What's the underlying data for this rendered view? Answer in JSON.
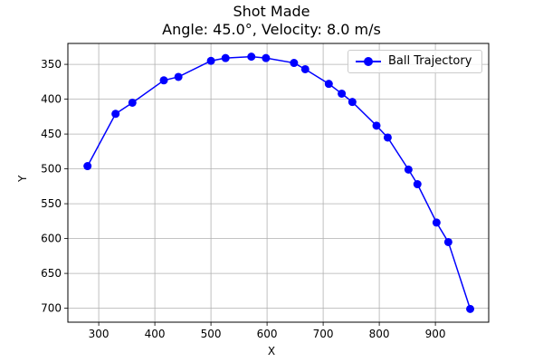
{
  "chart_data": {
    "type": "line",
    "title": "Shot Made",
    "subtitle": "Angle: 45.0°, Velocity: 8.0 m/s",
    "xlabel": "X",
    "ylabel": "Y",
    "xlim": [
      245,
      995
    ],
    "ylim": [
      720,
      320
    ],
    "y_inverted": true,
    "xticks": [
      300,
      400,
      500,
      600,
      700,
      800,
      900
    ],
    "yticks": [
      350,
      400,
      450,
      500,
      550,
      600,
      650,
      700
    ],
    "grid": true,
    "legend_position": "top-right",
    "series": [
      {
        "name": "Ball Trajectory",
        "color": "#0000ff",
        "marker": "circle",
        "x": [
          280,
          330,
          360,
          416,
          442,
          500,
          526,
          572,
          598,
          648,
          668,
          710,
          733,
          752,
          795,
          815,
          852,
          868,
          902,
          923,
          962
        ],
        "y": [
          496,
          421,
          405,
          373,
          368,
          345,
          341,
          339,
          341,
          348,
          357,
          378,
          392,
          404,
          438,
          455,
          501,
          522,
          577,
          605,
          701
        ]
      }
    ]
  }
}
